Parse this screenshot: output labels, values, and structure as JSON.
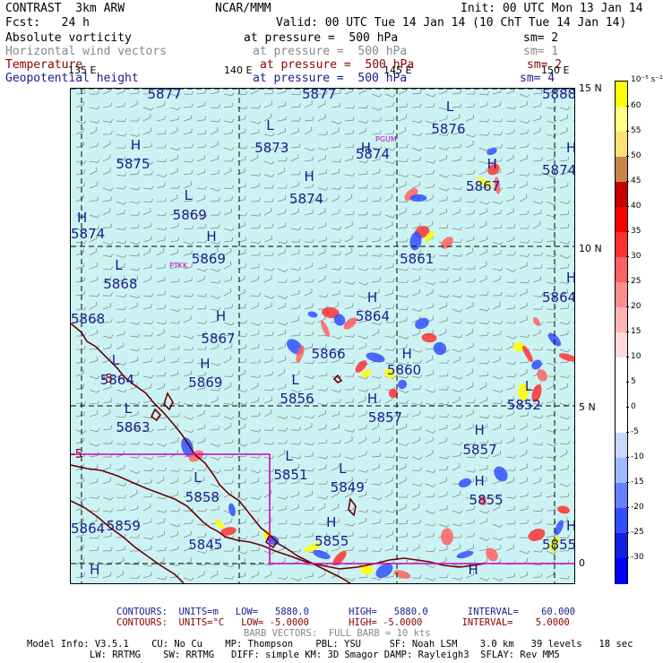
{
  "header": {
    "model": "CONTRAST  3km ARW",
    "org": "NCAR/MMM",
    "init": "Init: 00 UTC Mon 13 Jan 14",
    "fcst": "Fcst:   24 h",
    "valid": "Valid: 00 UTC Tue 14 Jan 14 (10 ChT Tue 14 Jan 14)",
    "fields": [
      {
        "name": "Absolute vorticity",
        "level": "at pressure =  500 hPa",
        "sm": "sm= 2",
        "color": "#000000"
      },
      {
        "name": "Horizontal wind vectors",
        "level": "at pressure =  500 hPa",
        "sm": "sm= 1",
        "color": "#888888"
      },
      {
        "name": "Temperature",
        "level": "at pressure =  500 hPa",
        "sm": "sm= 2",
        "color": "#8b0000"
      },
      {
        "name": "Geopotential height",
        "level": "at pressure =  500 hPa",
        "sm": "sm= 4",
        "color": "#1a1a8c"
      }
    ]
  },
  "colorbar": {
    "unit": "10⁻⁵ s⁻¹",
    "levels": [
      "60",
      "55",
      "50",
      "45",
      "40",
      "35",
      "30",
      "25",
      "20",
      "15",
      "10",
      "5",
      "0",
      "-5",
      "-10",
      "-15",
      "-20",
      "-25",
      "-30"
    ],
    "colors": [
      "#ffff00",
      "#ffff80",
      "#ffe070",
      "#c8864a",
      "#c80000",
      "#ff0000",
      "#ff3030",
      "#ff6060",
      "#ff8c8c",
      "#ffb4b4",
      "#ffd8d8",
      "#ffffff",
      "#ffffff",
      "#ffffff",
      "#c8d8ff",
      "#a0b8ff",
      "#6480ff",
      "#3050ff",
      "#1020e0",
      "#0000ff"
    ]
  },
  "axes": {
    "lon_labels": [
      "135 E",
      "140 E",
      "145 E",
      "150 E"
    ],
    "lat_labels": [
      "15 N",
      "10 N",
      "5 N",
      "0"
    ]
  },
  "stations": [
    "PGUM",
    "PTKK"
  ],
  "height_labels": [
    {
      "text": "5877",
      "lon": 137.6,
      "lat": 14.8
    },
    {
      "text": "5877",
      "lon": 142.5,
      "lat": 14.8
    },
    {
      "text": "5888",
      "lon": 150.8,
      "lat": 14.8
    },
    {
      "text": "L",
      "lon": 146.7,
      "lat": 14.4
    },
    {
      "text": "5876",
      "lon": 146.6,
      "lat": 13.7
    },
    {
      "text": "L",
      "lon": 141.0,
      "lat": 13.8
    },
    {
      "text": "5873",
      "lon": 141.0,
      "lat": 13.1
    },
    {
      "text": "H",
      "lon": 144.0,
      "lat": 13.1
    },
    {
      "text": "5874",
      "lon": 144.2,
      "lat": 12.9
    },
    {
      "text": "H",
      "lon": 151.0,
      "lat": 13.1
    },
    {
      "text": "5874",
      "lon": 151.0,
      "lat": 12.4
    },
    {
      "text": "H",
      "lon": 136.7,
      "lat": 13.2
    },
    {
      "text": "5875",
      "lon": 136.6,
      "lat": 12.6
    },
    {
      "text": "H",
      "lon": 148.0,
      "lat": 12.6
    },
    {
      "text": "5867",
      "lon": 147.7,
      "lat": 11.9
    },
    {
      "text": "H",
      "lon": 142.2,
      "lat": 12.2
    },
    {
      "text": "5874",
      "lon": 142.1,
      "lat": 11.5
    },
    {
      "text": "L",
      "lon": 138.4,
      "lat": 11.6
    },
    {
      "text": "5869",
      "lon": 138.4,
      "lat": 11.0
    },
    {
      "text": "H",
      "lon": 135.0,
      "lat": 10.9
    },
    {
      "text": "5874",
      "lon": 134.9,
      "lat": 10.4
    },
    {
      "text": "H",
      "lon": 139.1,
      "lat": 10.3
    },
    {
      "text": "5861",
      "lon": 145.6,
      "lat": 9.6
    },
    {
      "text": "5869",
      "lon": 139.0,
      "lat": 9.6
    },
    {
      "text": "L",
      "lon": 136.2,
      "lat": 9.4
    },
    {
      "text": "5868",
      "lon": 136.2,
      "lat": 8.8
    },
    {
      "text": "H",
      "lon": 151.0,
      "lat": 9.0
    },
    {
      "text": "5864",
      "lon": 151.0,
      "lat": 8.4
    },
    {
      "text": "H",
      "lon": 144.2,
      "lat": 8.4
    },
    {
      "text": "5864",
      "lon": 144.2,
      "lat": 7.8
    },
    {
      "text": "5868",
      "lon": 134.0,
      "lat": 7.7
    },
    {
      "text": "H",
      "lon": 139.4,
      "lat": 7.8
    },
    {
      "text": "5867",
      "lon": 139.3,
      "lat": 7.1
    },
    {
      "text": "5866",
      "lon": 142.8,
      "lat": 6.6
    },
    {
      "text": "H",
      "lon": 145.3,
      "lat": 6.6
    },
    {
      "text": "L",
      "lon": 136.1,
      "lat": 6.4
    },
    {
      "text": "H",
      "lon": 138.9,
      "lat": 6.3
    },
    {
      "text": "5860",
      "lon": 145.2,
      "lat": 6.1
    },
    {
      "text": "5864",
      "lon": 136.1,
      "lat": 5.8
    },
    {
      "text": "5869",
      "lon": 138.9,
      "lat": 5.7
    },
    {
      "text": "L",
      "lon": 141.8,
      "lat": 5.8
    },
    {
      "text": "L",
      "lon": 149.2,
      "lat": 5.6
    },
    {
      "text": "5856",
      "lon": 141.8,
      "lat": 5.2
    },
    {
      "text": "H",
      "lon": 144.2,
      "lat": 5.2
    },
    {
      "text": "5852",
      "lon": 149.0,
      "lat": 5.0
    },
    {
      "text": "L",
      "lon": 136.5,
      "lat": 4.9
    },
    {
      "text": "5857",
      "lon": 144.6,
      "lat": 4.6
    },
    {
      "text": "5863",
      "lon": 136.6,
      "lat": 4.3
    },
    {
      "text": "H",
      "lon": 147.6,
      "lat": 4.2
    },
    {
      "text": "5857",
      "lon": 147.6,
      "lat": 3.6
    },
    {
      "text": "L",
      "lon": 141.6,
      "lat": 3.4
    },
    {
      "text": "5851",
      "lon": 141.6,
      "lat": 2.8
    },
    {
      "text": "L",
      "lon": 143.3,
      "lat": 3.0
    },
    {
      "text": "5849",
      "lon": 143.4,
      "lat": 2.4
    },
    {
      "text": "L",
      "lon": 138.7,
      "lat": 2.7
    },
    {
      "text": "5858",
      "lon": 138.8,
      "lat": 2.1
    },
    {
      "text": "H",
      "lon": 147.6,
      "lat": 2.6
    },
    {
      "text": "5855",
      "lon": 147.8,
      "lat": 2.0
    },
    {
      "text": "5859",
      "lon": 136.3,
      "lat": 1.2
    },
    {
      "text": "5864",
      "lon": 134.0,
      "lat": 1.1
    },
    {
      "text": "H",
      "lon": 142.9,
      "lat": 1.3
    },
    {
      "text": "5855",
      "lon": 142.9,
      "lat": 0.7
    },
    {
      "text": "H",
      "lon": 150.9,
      "lat": 1.2
    },
    {
      "text": "5855",
      "lon": 150.9,
      "lat": 0.6
    },
    {
      "text": "5845",
      "lon": 138.9,
      "lat": 0.6
    },
    {
      "text": "H",
      "lon": 135.4,
      "lat": -0.2
    },
    {
      "text": "H",
      "lon": 147.4,
      "lat": -0.2
    }
  ],
  "temperature_labels": [
    "-5",
    "-5"
  ],
  "footer": {
    "contours1": "CONTOURS:  UNITS=m   LOW=   5880.0       HIGH=   5880.0       INTERVAL=    60.000",
    "contours2": "CONTOURS:  UNITS=°C   LOW= -5.0000       HIGH= -5.0000       INTERVAL=    5.0000",
    "barbs": "BARB VECTORS:  FULL BARB = 10 kts",
    "model_info1": "Model Info: V3.5.1    CU: No Cu    MP: Thompson    PBL: YSU     SF: Noah LSM    3.0 km   39 levels   18 sec",
    "model_info2": "LW: RRTMG    SW: RRTMG   DIFF: simple KM: 3D Smagor DAMP: Rayleigh3  SFLAY: Rev MM5"
  }
}
